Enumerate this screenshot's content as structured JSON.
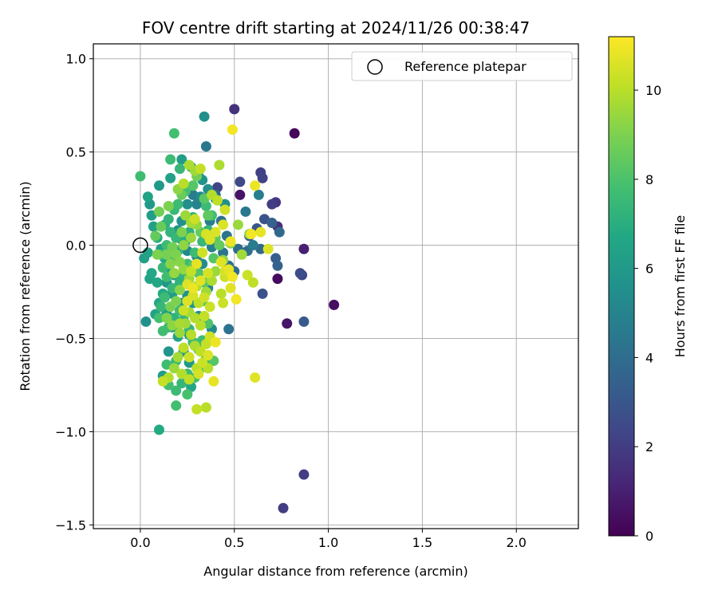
{
  "chart_data": {
    "type": "scatter",
    "title": "FOV centre drift starting at 2024/11/26 00:38:47",
    "xlabel": "Angular distance from reference (arcmin)",
    "ylabel": "Rotation from reference (arcmin)",
    "xlim": [
      -0.25,
      2.33
    ],
    "ylim": [
      -1.52,
      1.08
    ],
    "xticks": [
      0.0,
      0.5,
      1.0,
      1.5,
      2.0
    ],
    "xtick_labels": [
      "0.0",
      "0.5",
      "1.0",
      "1.5",
      "2.0"
    ],
    "yticks": [
      -1.5,
      -1.0,
      -0.5,
      0.0,
      0.5,
      1.0
    ],
    "ytick_labels": [
      "−1.5",
      "−1.0",
      "−0.5",
      "0.0",
      "0.5",
      "1.0"
    ],
    "grid": true,
    "legend": {
      "position": "top-right",
      "entries": [
        "Reference platepar"
      ]
    },
    "reference_point": {
      "x": 0.0,
      "y": 0.0
    },
    "colorbar": {
      "label": "Hours from first FF file",
      "range": [
        0,
        11.2
      ],
      "ticks": [
        0,
        2,
        4,
        6,
        8,
        10
      ],
      "tick_labels": [
        "0",
        "2",
        "4",
        "6",
        "8",
        "10"
      ],
      "colormap": "viridis"
    },
    "points": [
      [
        0.82,
        0.6,
        0.2
      ],
      [
        0.5,
        0.73,
        1.6
      ],
      [
        0.87,
        -0.02,
        1.0
      ],
      [
        0.73,
        -0.18,
        0.3
      ],
      [
        1.03,
        -0.32,
        0.4
      ],
      [
        0.78,
        -0.42,
        0.6
      ],
      [
        0.87,
        -0.41,
        3.2
      ],
      [
        0.87,
        -1.23,
        2.0
      ],
      [
        0.76,
        -1.41,
        2.0
      ],
      [
        0.53,
        0.27,
        0.6
      ],
      [
        0.64,
        0.39,
        2.1
      ],
      [
        0.65,
        0.36,
        2.2
      ],
      [
        0.7,
        0.22,
        2.0
      ],
      [
        0.72,
        0.23,
        1.8
      ],
      [
        0.73,
        0.1,
        1.5
      ],
      [
        0.66,
        0.14,
        2.8
      ],
      [
        0.7,
        0.12,
        3.5
      ],
      [
        0.74,
        0.07,
        3.8
      ],
      [
        0.62,
        0.09,
        3.0
      ],
      [
        0.58,
        0.05,
        3.2
      ],
      [
        0.73,
        -0.11,
        3.5
      ],
      [
        0.72,
        -0.07,
        3.3
      ],
      [
        0.85,
        -0.15,
        2.6
      ],
      [
        0.86,
        -0.16,
        2.4
      ],
      [
        0.65,
        -0.26,
        2.8
      ],
      [
        0.57,
        -0.03,
        4.0
      ],
      [
        0.53,
        0.34,
        2.5
      ],
      [
        0.41,
        0.31,
        2.3
      ],
      [
        0.4,
        0.27,
        3.6
      ],
      [
        0.35,
        0.53,
        4.5
      ],
      [
        0.34,
        0.69,
        5.5
      ],
      [
        0.56,
        0.18,
        4.5
      ],
      [
        0.63,
        0.27,
        4.8
      ],
      [
        0.6,
        0.0,
        4.6
      ],
      [
        0.64,
        -0.02,
        3.8
      ],
      [
        0.47,
        -0.45,
        4.2
      ],
      [
        0.46,
        0.05,
        4.3
      ],
      [
        0.43,
        0.13,
        4.2
      ],
      [
        0.39,
        0.06,
        4.5
      ],
      [
        0.37,
        0.13,
        4.8
      ],
      [
        0.32,
        0.26,
        5.2
      ],
      [
        0.3,
        0.22,
        5.0
      ],
      [
        0.28,
        0.27,
        4.6
      ],
      [
        0.25,
        0.22,
        5.5
      ],
      [
        0.22,
        0.13,
        5.6
      ],
      [
        0.2,
        0.08,
        5.8
      ],
      [
        0.22,
        0.03,
        5.4
      ],
      [
        0.25,
        -0.03,
        5.2
      ],
      [
        0.3,
        -0.06,
        5.0
      ],
      [
        0.33,
        -0.1,
        5.4
      ],
      [
        0.38,
        -0.01,
        4.9
      ],
      [
        0.44,
        -0.04,
        4.4
      ],
      [
        0.47,
        -0.11,
        4.2
      ],
      [
        0.5,
        -0.14,
        4.0
      ],
      [
        0.52,
        -0.02,
        3.9
      ],
      [
        0.36,
        -0.23,
        5.0
      ],
      [
        0.38,
        -0.45,
        5.3
      ],
      [
        0.31,
        -0.38,
        5.5
      ],
      [
        0.28,
        -0.31,
        5.8
      ],
      [
        0.25,
        -0.27,
        5.6
      ],
      [
        0.22,
        -0.21,
        6.0
      ],
      [
        0.18,
        -0.16,
        6.2
      ],
      [
        0.15,
        -0.12,
        6.5
      ],
      [
        0.13,
        -0.07,
        6.6
      ],
      [
        0.11,
        -0.02,
        6.3
      ],
      [
        0.09,
        0.04,
        6.8
      ],
      [
        0.07,
        0.1,
        6.4
      ],
      [
        0.06,
        0.16,
        6.2
      ],
      [
        0.05,
        0.22,
        6.0
      ],
      [
        0.04,
        0.26,
        6.5
      ],
      [
        0.1,
        0.32,
        6.0
      ],
      [
        0.16,
        0.36,
        6.4
      ],
      [
        0.22,
        0.46,
        6.2
      ],
      [
        0.27,
        0.42,
        6.1
      ],
      [
        0.31,
        0.37,
        5.9
      ],
      [
        0.33,
        0.35,
        5.7
      ],
      [
        0.36,
        0.3,
        5.5
      ],
      [
        0.4,
        0.25,
        5.8
      ],
      [
        0.45,
        0.22,
        5.6
      ],
      [
        0.02,
        -0.07,
        6.3
      ],
      [
        0.05,
        -0.18,
        6.5
      ],
      [
        0.09,
        -0.2,
        6.6
      ],
      [
        0.12,
        -0.26,
        6.8
      ],
      [
        0.14,
        -0.36,
        6.2
      ],
      [
        0.17,
        -0.44,
        6.0
      ],
      [
        0.2,
        -0.49,
        6.4
      ],
      [
        0.23,
        -0.57,
        6.2
      ],
      [
        0.26,
        -0.63,
        6.0
      ],
      [
        0.15,
        -0.57,
        5.8
      ],
      [
        0.12,
        -0.7,
        6.2
      ],
      [
        0.03,
        -0.41,
        5.6
      ],
      [
        0.27,
        -0.76,
        6.6
      ],
      [
        0.26,
        -0.48,
        6.0
      ],
      [
        0.22,
        -0.31,
        6.2
      ],
      [
        0.17,
        -0.26,
        6.1
      ],
      [
        0.14,
        -0.2,
        5.9
      ],
      [
        0.1,
        -0.31,
        6.6
      ],
      [
        0.08,
        -0.37,
        6.4
      ],
      [
        0.06,
        -0.15,
        6.7
      ],
      [
        0.04,
        -0.04,
        6.5
      ],
      [
        0.18,
        0.6,
        7.8
      ],
      [
        0.0,
        0.37,
        7.7
      ],
      [
        0.16,
        0.46,
        7.6
      ],
      [
        0.21,
        0.41,
        7.4
      ],
      [
        0.24,
        0.29,
        7.8
      ],
      [
        0.2,
        0.22,
        7.6
      ],
      [
        0.18,
        0.19,
        7.5
      ],
      [
        0.15,
        0.14,
        7.3
      ],
      [
        0.13,
        0.11,
        7.1
      ],
      [
        0.16,
        0.07,
        7.3
      ],
      [
        0.19,
        0.04,
        7.4
      ],
      [
        0.14,
        0.0,
        7.6
      ],
      [
        0.11,
        -0.05,
        7.8
      ],
      [
        0.12,
        -0.12,
        7.5
      ],
      [
        0.14,
        -0.17,
        7.7
      ],
      [
        0.17,
        -0.23,
        7.4
      ],
      [
        0.21,
        -0.2,
        7.2
      ],
      [
        0.23,
        -0.16,
        7.3
      ],
      [
        0.25,
        -0.1,
        7.7
      ],
      [
        0.29,
        -0.04,
        7.6
      ],
      [
        0.33,
        0.02,
        7.4
      ],
      [
        0.36,
        0.08,
        7.3
      ],
      [
        0.35,
        0.21,
        7.6
      ],
      [
        0.38,
        0.16,
        7.8
      ],
      [
        0.28,
        0.15,
        7.2
      ],
      [
        0.26,
        0.07,
        7.1
      ],
      [
        0.24,
        0.02,
        7.0
      ],
      [
        0.2,
        -0.03,
        7.2
      ],
      [
        0.17,
        -0.08,
        7.5
      ],
      [
        0.13,
        -0.28,
        7.6
      ],
      [
        0.11,
        -0.33,
        7.4
      ],
      [
        0.1,
        -0.39,
        7.8
      ],
      [
        0.12,
        -0.46,
        7.7
      ],
      [
        0.15,
        -0.44,
        7.5
      ],
      [
        0.18,
        -0.39,
        7.2
      ],
      [
        0.21,
        -0.35,
        7.6
      ],
      [
        0.23,
        -0.4,
        7.4
      ],
      [
        0.26,
        -0.45,
        7.3
      ],
      [
        0.28,
        -0.52,
        7.7
      ],
      [
        0.31,
        -0.56,
        7.9
      ],
      [
        0.33,
        -0.51,
        7.6
      ],
      [
        0.35,
        -0.61,
        7.5
      ],
      [
        0.32,
        -0.66,
        7.7
      ],
      [
        0.29,
        -0.71,
        7.8
      ],
      [
        0.25,
        -0.69,
        7.6
      ],
      [
        0.22,
        -0.74,
        7.4
      ],
      [
        0.19,
        -0.78,
        7.6
      ],
      [
        0.15,
        -0.75,
        7.8
      ],
      [
        0.14,
        -0.64,
        7.7
      ],
      [
        0.19,
        -0.62,
        7.5
      ],
      [
        0.25,
        -0.8,
        7.9
      ],
      [
        0.19,
        -0.86,
        7.8
      ],
      [
        0.1,
        -0.99,
        6.8
      ],
      [
        0.39,
        -0.62,
        8.2
      ],
      [
        0.36,
        -0.42,
        8.1
      ],
      [
        0.33,
        -0.3,
        8.0
      ],
      [
        0.34,
        -0.2,
        8.3
      ],
      [
        0.31,
        -0.15,
        8.1
      ],
      [
        0.28,
        -0.11,
        8.3
      ],
      [
        0.32,
        0.07,
        8.5
      ],
      [
        0.4,
        0.04,
        8.4
      ],
      [
        0.42,
        0.0,
        8.5
      ],
      [
        0.39,
        -0.07,
        8.2
      ],
      [
        0.28,
        0.32,
        8.2
      ],
      [
        0.3,
        0.37,
        8.8
      ],
      [
        0.34,
        0.25,
        8.3
      ],
      [
        0.22,
        0.27,
        8.6
      ],
      [
        0.36,
        0.16,
        8.4
      ],
      [
        0.42,
        0.43,
        9.8
      ],
      [
        0.52,
        0.11,
        9.5
      ],
      [
        0.58,
        0.06,
        9.4
      ],
      [
        0.54,
        -0.05,
        9.6
      ],
      [
        0.48,
        0.01,
        9.2
      ],
      [
        0.44,
        -0.08,
        9.3
      ],
      [
        0.4,
        -0.14,
        9.5
      ],
      [
        0.38,
        -0.19,
        9.8
      ],
      [
        0.35,
        -0.25,
        9.6
      ],
      [
        0.3,
        -0.22,
        9.8
      ],
      [
        0.26,
        -0.18,
        9.6
      ],
      [
        0.23,
        -0.13,
        9.4
      ],
      [
        0.21,
        -0.09,
        9.2
      ],
      [
        0.19,
        -0.05,
        9.0
      ],
      [
        0.23,
        0.0,
        9.3
      ],
      [
        0.27,
        0.04,
        9.5
      ],
      [
        0.3,
        0.11,
        9.4
      ],
      [
        0.27,
        0.12,
        9.7
      ],
      [
        0.24,
        0.16,
        9.5
      ],
      [
        0.22,
        0.07,
        9.0
      ],
      [
        0.17,
        -0.01,
        8.8
      ],
      [
        0.14,
        -0.05,
        8.9
      ],
      [
        0.09,
        -0.05,
        9.0
      ],
      [
        0.16,
        -0.1,
        9.2
      ],
      [
        0.18,
        -0.15,
        9.4
      ],
      [
        0.21,
        -0.24,
        9.2
      ],
      [
        0.19,
        -0.3,
        9.0
      ],
      [
        0.16,
        -0.33,
        8.9
      ],
      [
        0.14,
        -0.39,
        9.1
      ],
      [
        0.17,
        -0.43,
        9.3
      ],
      [
        0.21,
        -0.47,
        9.5
      ],
      [
        0.24,
        -0.42,
        9.6
      ],
      [
        0.26,
        -0.36,
        9.7
      ],
      [
        0.29,
        -0.39,
        9.9
      ],
      [
        0.32,
        -0.43,
        10.0
      ],
      [
        0.34,
        -0.38,
        10.2
      ],
      [
        0.37,
        -0.33,
        10.3
      ],
      [
        0.34,
        -0.28,
        10.4
      ],
      [
        0.31,
        -0.31,
        10.1
      ],
      [
        0.28,
        -0.27,
        10.5
      ],
      [
        0.25,
        -0.3,
        10.6
      ],
      [
        0.23,
        -0.35,
        10.3
      ],
      [
        0.27,
        -0.48,
        10.0
      ],
      [
        0.29,
        -0.54,
        9.8
      ],
      [
        0.32,
        -0.57,
        10.1
      ],
      [
        0.35,
        -0.53,
        10.2
      ],
      [
        0.37,
        -0.49,
        10.4
      ],
      [
        0.33,
        -0.63,
        10.3
      ],
      [
        0.3,
        -0.66,
        10.0
      ],
      [
        0.26,
        -0.6,
        10.4
      ],
      [
        0.23,
        -0.55,
        10.1
      ],
      [
        0.2,
        -0.6,
        9.7
      ],
      [
        0.18,
        -0.66,
        9.5
      ],
      [
        0.15,
        -0.71,
        9.9
      ],
      [
        0.12,
        -0.73,
        10.2
      ],
      [
        0.31,
        -0.69,
        10.5
      ],
      [
        0.36,
        -0.66,
        10.0
      ],
      [
        0.39,
        -0.73,
        10.8
      ],
      [
        0.35,
        -0.87,
        10.0
      ],
      [
        0.3,
        -0.88,
        10.2
      ],
      [
        0.36,
        -0.59,
        10.6
      ],
      [
        0.4,
        -0.52,
        10.9
      ],
      [
        0.44,
        -0.31,
        10.3
      ],
      [
        0.48,
        -0.23,
        10.7
      ],
      [
        0.51,
        -0.29,
        11.0
      ],
      [
        0.47,
        -0.13,
        10.8
      ],
      [
        0.49,
        -0.17,
        11.0
      ],
      [
        0.45,
        -0.14,
        10.5
      ],
      [
        0.43,
        -0.09,
        10.7
      ],
      [
        0.48,
        0.02,
        10.9
      ],
      [
        0.44,
        0.11,
        10.6
      ],
      [
        0.45,
        0.19,
        10.4
      ],
      [
        0.41,
        0.24,
        10.1
      ],
      [
        0.38,
        0.27,
        9.9
      ],
      [
        0.29,
        0.4,
        9.6
      ],
      [
        0.26,
        0.43,
        9.8
      ],
      [
        0.23,
        0.33,
        10.0
      ],
      [
        0.2,
        0.3,
        9.3
      ],
      [
        0.15,
        0.21,
        9.0
      ],
      [
        0.1,
        0.18,
        8.8
      ],
      [
        0.11,
        0.1,
        8.6
      ],
      [
        0.08,
        0.05,
        8.5
      ],
      [
        0.29,
        0.14,
        10.3
      ],
      [
        0.35,
        0.06,
        10.5
      ],
      [
        0.37,
        0.03,
        10.6
      ],
      [
        0.33,
        -0.04,
        10.4
      ],
      [
        0.3,
        -0.1,
        10.8
      ],
      [
        0.27,
        -0.14,
        10.2
      ],
      [
        0.25,
        -0.21,
        10.6
      ],
      [
        0.28,
        -0.23,
        10.9
      ],
      [
        0.32,
        -0.19,
        10.7
      ],
      [
        0.36,
        -0.15,
        10.5
      ],
      [
        0.49,
        0.62,
        11.0
      ],
      [
        0.61,
        0.32,
        10.9
      ],
      [
        0.59,
        0.06,
        11.0
      ],
      [
        0.64,
        0.07,
        10.8
      ],
      [
        0.68,
        -0.02,
        10.6
      ],
      [
        0.57,
        -0.16,
        10.3
      ],
      [
        0.6,
        -0.2,
        10.1
      ],
      [
        0.61,
        -0.71,
        10.7
      ],
      [
        0.45,
        -0.17,
        10.3
      ],
      [
        0.43,
        -0.26,
        10.0
      ],
      [
        0.22,
        -0.69,
        9.9
      ],
      [
        0.26,
        -0.72,
        10.1
      ],
      [
        0.21,
        -0.42,
        9.7
      ],
      [
        0.4,
        0.07,
        10.6
      ],
      [
        0.32,
        0.41,
        10.2
      ]
    ]
  }
}
